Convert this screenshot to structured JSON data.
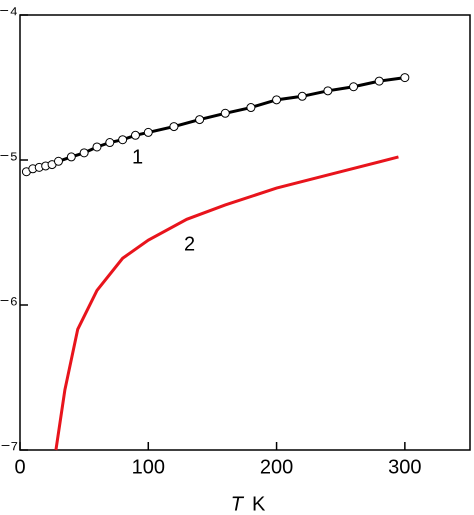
{
  "chart_data": {
    "type": "line",
    "yscale": "log",
    "x_label_symbol": "T",
    "x_label_unit": "K",
    "xlim": [
      0,
      350
    ],
    "xticks": [
      0,
      100,
      200,
      300
    ],
    "ylim": [
      1e-07,
      0.0001
    ],
    "yticks": [
      {
        "value": 1e-07,
        "label": "10⁻⁷"
      },
      {
        "value": 1e-06,
        "label": "10⁻⁶"
      },
      {
        "value": 1e-05,
        "label": "10⁻⁵"
      },
      {
        "value": 0.0001,
        "label": "10⁻⁴"
      }
    ],
    "annotations": [
      "1",
      "2"
    ],
    "series": [
      {
        "color": "#000000",
        "marker": "circle",
        "x": [
          5,
          10,
          15,
          20,
          25,
          30,
          40,
          50,
          60,
          70,
          80,
          90,
          100,
          120,
          140,
          160,
          180,
          200,
          220,
          240,
          260,
          280,
          300
        ],
        "values": [
          8.3e-06,
          8.7e-06,
          8.9e-06,
          9.1e-06,
          9.3e-06,
          9.8e-06,
          1.05e-05,
          1.12e-05,
          1.23e-05,
          1.32e-05,
          1.38e-05,
          1.48e-05,
          1.55e-05,
          1.7e-05,
          1.9e-05,
          2.1e-05,
          2.3e-05,
          2.6e-05,
          2.75e-05,
          3e-05,
          3.2e-05,
          3.5e-05,
          3.7e-05
        ]
      },
      {
        "color": "#e8141c",
        "marker": "none",
        "x": [
          28,
          35,
          45,
          60,
          80,
          100,
          130,
          160,
          200,
          250,
          295
        ],
        "values": [
          1e-07,
          2.6e-07,
          6.8e-07,
          1.26e-06,
          2.1e-06,
          2.8e-06,
          3.9e-06,
          4.9e-06,
          6.4e-06,
          8.3e-06,
          1.05e-05
        ]
      }
    ]
  }
}
